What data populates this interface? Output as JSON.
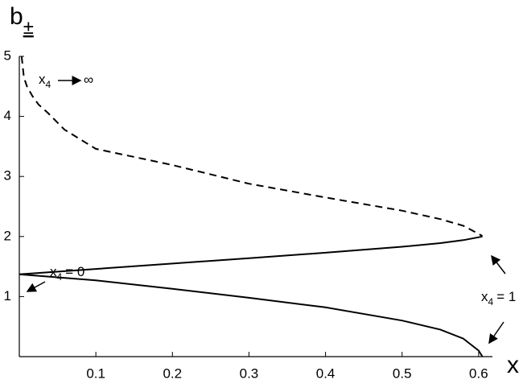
{
  "chart_data": {
    "type": "line",
    "y_label": {
      "base": "b",
      "sub": "±"
    },
    "x_label": "x",
    "xlim": [
      0,
      0.618
    ],
    "ylim": [
      0,
      5
    ],
    "xticks": [
      0.1,
      0.2,
      0.3,
      0.4,
      0.5,
      0.6
    ],
    "yticks": [
      1,
      2,
      3,
      4,
      5
    ],
    "color": "#000000",
    "series": [
      {
        "dashed": true,
        "x": [
          0.003,
          0.006,
          0.01,
          0.017,
          0.025,
          0.038,
          0.059,
          0.1,
          0.2,
          0.3,
          0.4,
          0.5,
          0.55,
          0.58,
          0.605
        ],
        "values": [
          5,
          4.65,
          4.5,
          4.34,
          4.2,
          4.05,
          3.78,
          3.46,
          3.19,
          2.88,
          2.65,
          2.43,
          2.29,
          2.18,
          2.01
        ]
      },
      {
        "dashed": false,
        "x": [
          0,
          0.1,
          0.2,
          0.3,
          0.4,
          0.5,
          0.55,
          0.58,
          0.605
        ],
        "values": [
          1.37,
          1.46,
          1.55,
          1.64,
          1.73,
          1.83,
          1.89,
          1.94,
          2.0
        ]
      },
      {
        "dashed": false,
        "x": [
          0,
          0.1,
          0.2,
          0.3,
          0.4,
          0.5,
          0.55,
          0.58,
          0.6,
          0.605
        ],
        "values": [
          1.37,
          1.27,
          1.13,
          0.98,
          0.82,
          0.6,
          0.45,
          0.3,
          0.1,
          0
        ]
      }
    ],
    "annotations": [
      {
        "base": "x",
        "sub": "4",
        "rest": "∞"
      },
      {
        "base": "x",
        "sub": "4",
        "rest": "= 0"
      },
      {
        "base": "x",
        "sub": "4",
        "rest": "= 1"
      }
    ]
  }
}
